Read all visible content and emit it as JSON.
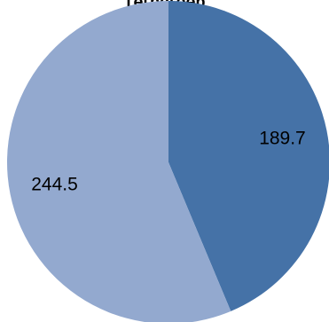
{
  "chart_data": {
    "type": "pie",
    "title": "Төгрөгөөр",
    "slices": [
      {
        "label": "189.7",
        "value": 189.7,
        "color": "#4572a7"
      },
      {
        "label": "244.5",
        "value": 244.5,
        "color": "#93a9cf"
      }
    ],
    "start_angle_deg": 0,
    "direction": "clockwise",
    "legend": "none"
  }
}
